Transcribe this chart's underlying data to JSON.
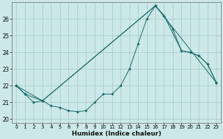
{
  "xlabel": "Humidex (Indice chaleur)",
  "bg_color": "#cce8e8",
  "grid_color": "#aacccc",
  "line_color": "#1a6b6b",
  "xlim": [
    -0.5,
    23.5
  ],
  "ylim": [
    19.75,
    27.0
  ],
  "xticks": [
    0,
    1,
    2,
    3,
    4,
    5,
    6,
    7,
    8,
    9,
    10,
    11,
    12,
    13,
    14,
    15,
    16,
    17,
    18,
    19,
    20,
    21,
    22,
    23
  ],
  "yticks": [
    20,
    21,
    22,
    23,
    24,
    25,
    26
  ],
  "line1_x": [
    0,
    1,
    2,
    3,
    4,
    5,
    6,
    7,
    8,
    9,
    10,
    11,
    12,
    13,
    14,
    15,
    16,
    17,
    18,
    19,
    20,
    21,
    22,
    23
  ],
  "line1_y": [
    22.0,
    21.5,
    21.0,
    21.1,
    20.8,
    20.7,
    20.5,
    20.45,
    20.5,
    21.0,
    21.5,
    21.5,
    22.0,
    23.0,
    24.5,
    26.0,
    26.8,
    26.2,
    25.4,
    24.1,
    24.0,
    23.8,
    23.3,
    22.2
  ],
  "line2_x": [
    0,
    1,
    3,
    16,
    17,
    19,
    20,
    21,
    22,
    23
  ],
  "line2_y": [
    22.0,
    21.5,
    21.1,
    26.8,
    26.2,
    24.1,
    24.0,
    23.8,
    23.3,
    22.2
  ],
  "line3_x": [
    0,
    3,
    16,
    23
  ],
  "line3_y": [
    22.0,
    21.1,
    26.8,
    22.2
  ],
  "xlabel_fontsize": 6.5,
  "tick_fontsize": 5.5
}
